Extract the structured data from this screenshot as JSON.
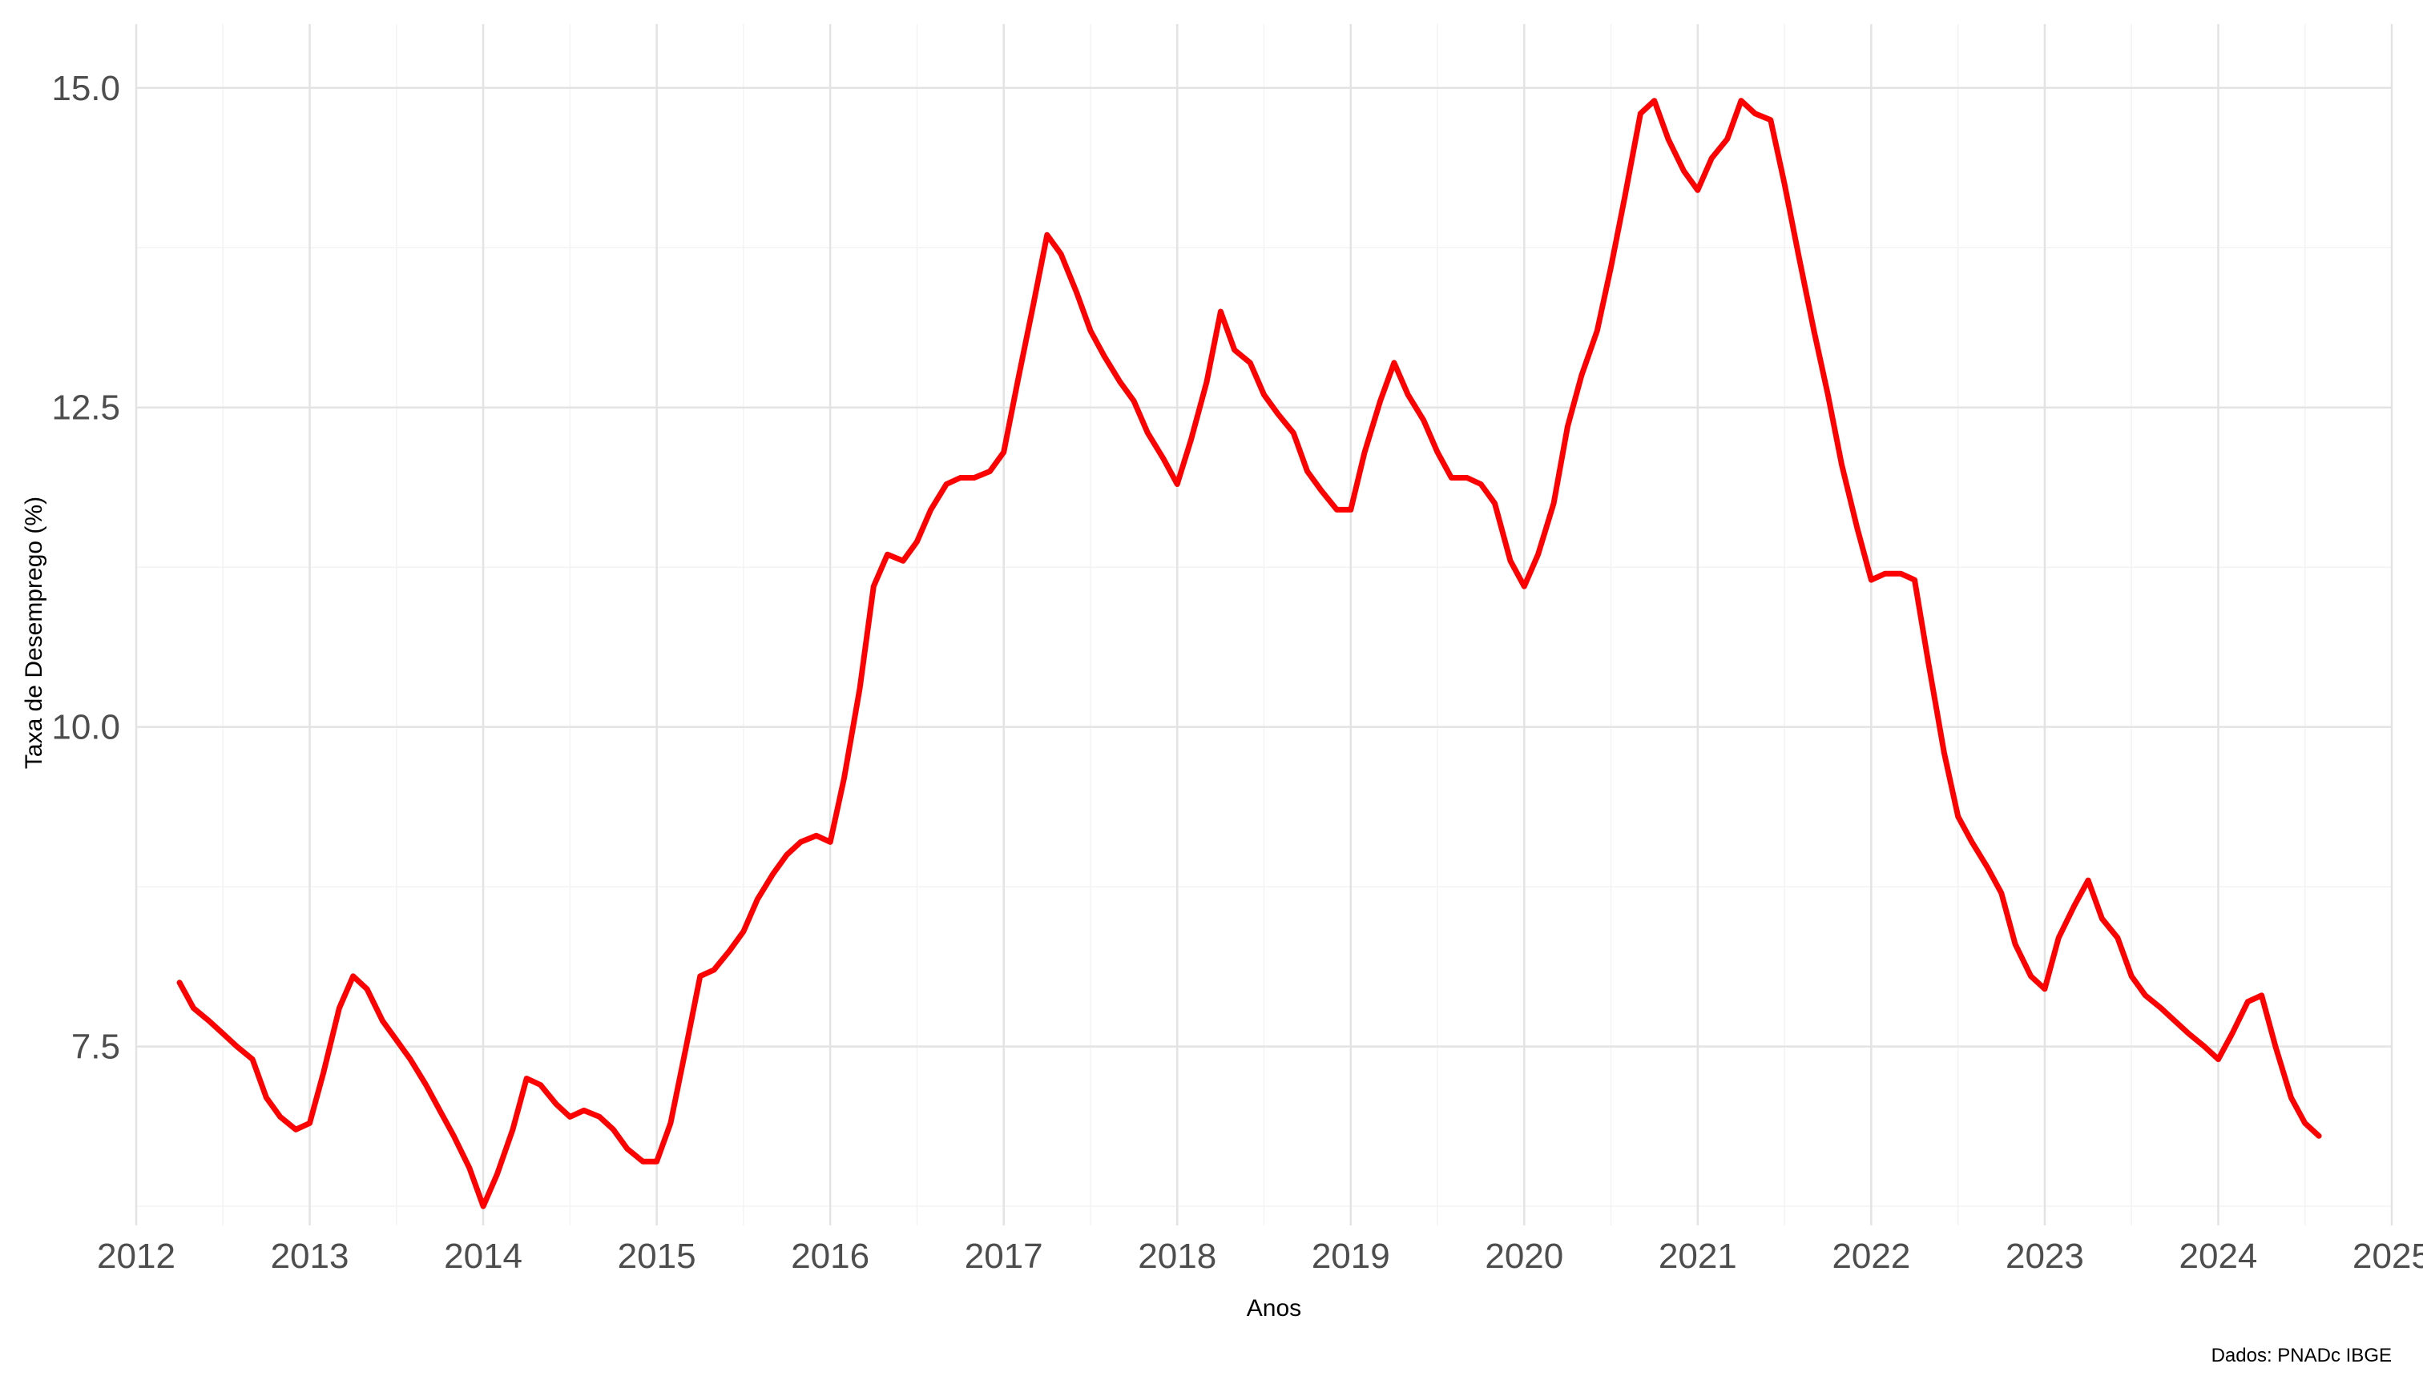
{
  "chart_data": {
    "type": "line",
    "title": "",
    "xlabel": "Anos",
    "ylabel": "Taxa de Desemprego (%)",
    "caption": "Dados: PNADc IBGE",
    "xlim": [
      2012,
      2025
    ],
    "ylim": [
      6.1,
      15.5
    ],
    "x_ticks": [
      "2012",
      "2013",
      "2014",
      "2015",
      "2016",
      "2017",
      "2018",
      "2019",
      "2020",
      "2021",
      "2022",
      "2023",
      "2024",
      "2025"
    ],
    "y_ticks": [
      "7.5",
      "10.0",
      "12.5",
      "15.0"
    ],
    "grid": true,
    "line_color": "#ff0000",
    "series": [
      {
        "x": [
          2012.25,
          2012.33,
          2012.42,
          2012.5,
          2012.58,
          2012.67,
          2012.75,
          2012.83,
          2012.92,
          2013.0,
          2013.08,
          2013.17,
          2013.25,
          2013.33,
          2013.42,
          2013.5,
          2013.58,
          2013.67,
          2013.75,
          2013.83,
          2013.92,
          2014.0,
          2014.08,
          2014.17,
          2014.25,
          2014.33,
          2014.42,
          2014.5,
          2014.58,
          2014.67,
          2014.75,
          2014.83,
          2014.92,
          2015.0,
          2015.08,
          2015.17,
          2015.25,
          2015.33,
          2015.42,
          2015.5,
          2015.58,
          2015.67,
          2015.75,
          2015.83,
          2015.92,
          2016.0,
          2016.08,
          2016.17,
          2016.25,
          2016.33,
          2016.42,
          2016.5,
          2016.58,
          2016.67,
          2016.75,
          2016.83,
          2016.92,
          2017.0,
          2017.08,
          2017.17,
          2017.25,
          2017.33,
          2017.42,
          2017.5,
          2017.58,
          2017.67,
          2017.75,
          2017.83,
          2017.92,
          2018.0,
          2018.08,
          2018.17,
          2018.25,
          2018.33,
          2018.42,
          2018.5,
          2018.58,
          2018.67,
          2018.75,
          2018.83,
          2018.92,
          2019.0,
          2019.08,
          2019.17,
          2019.25,
          2019.33,
          2019.42,
          2019.5,
          2019.58,
          2019.67,
          2019.75,
          2019.83,
          2019.92,
          2020.0,
          2020.08,
          2020.17,
          2020.25,
          2020.33,
          2020.42,
          2020.5,
          2020.58,
          2020.67,
          2020.75,
          2020.83,
          2020.92,
          2021.0,
          2021.08,
          2021.17,
          2021.25,
          2021.33,
          2021.42,
          2021.5,
          2021.58,
          2021.67,
          2021.75,
          2021.83,
          2021.92,
          2022.0,
          2022.08,
          2022.17,
          2022.25,
          2022.33,
          2022.42,
          2022.5,
          2022.58,
          2022.67,
          2022.75,
          2022.83,
          2022.92,
          2023.0,
          2023.08,
          2023.17,
          2023.25,
          2023.33,
          2023.42,
          2023.5,
          2023.58,
          2023.67,
          2023.75,
          2023.83,
          2023.92,
          2024.0,
          2024.08,
          2024.17,
          2024.25,
          2024.33,
          2024.42,
          2024.5,
          2024.58
        ],
        "values": [
          8.0,
          7.8,
          7.7,
          7.6,
          7.5,
          7.4,
          7.1,
          6.95,
          6.85,
          6.9,
          7.3,
          7.8,
          8.05,
          7.95,
          7.7,
          7.55,
          7.4,
          7.2,
          7.0,
          6.8,
          6.55,
          6.25,
          6.5,
          6.85,
          7.25,
          7.2,
          7.05,
          6.95,
          7.0,
          6.95,
          6.85,
          6.7,
          6.6,
          6.6,
          6.9,
          7.5,
          8.05,
          8.1,
          8.25,
          8.4,
          8.65,
          8.85,
          9.0,
          9.1,
          9.15,
          9.1,
          9.6,
          10.3,
          11.1,
          11.35,
          11.3,
          11.45,
          11.7,
          11.9,
          11.95,
          11.95,
          12.0,
          12.15,
          12.7,
          13.3,
          13.85,
          13.7,
          13.4,
          13.1,
          12.9,
          12.7,
          12.55,
          12.3,
          12.1,
          11.9,
          12.25,
          12.7,
          13.25,
          12.95,
          12.85,
          12.6,
          12.45,
          12.3,
          12.0,
          11.85,
          11.7,
          11.7,
          12.15,
          12.55,
          12.85,
          12.6,
          12.4,
          12.15,
          11.95,
          11.95,
          11.9,
          11.75,
          11.3,
          11.1,
          11.35,
          11.75,
          12.35,
          12.75,
          13.1,
          13.6,
          14.15,
          14.8,
          14.9,
          14.6,
          14.35,
          14.2,
          14.45,
          14.6,
          14.9,
          14.8,
          14.75,
          14.25,
          13.7,
          13.1,
          12.6,
          12.05,
          11.55,
          11.15,
          11.2,
          11.2,
          11.15,
          10.5,
          9.8,
          9.3,
          9.1,
          8.9,
          8.7,
          8.3,
          8.05,
          7.95,
          8.35,
          8.6,
          8.8,
          8.5,
          8.35,
          8.05,
          7.9,
          7.8,
          7.7,
          7.6,
          7.5,
          7.4,
          7.6,
          7.85,
          7.9,
          7.5,
          7.1,
          6.9,
          6.8
        ]
      }
    ]
  }
}
